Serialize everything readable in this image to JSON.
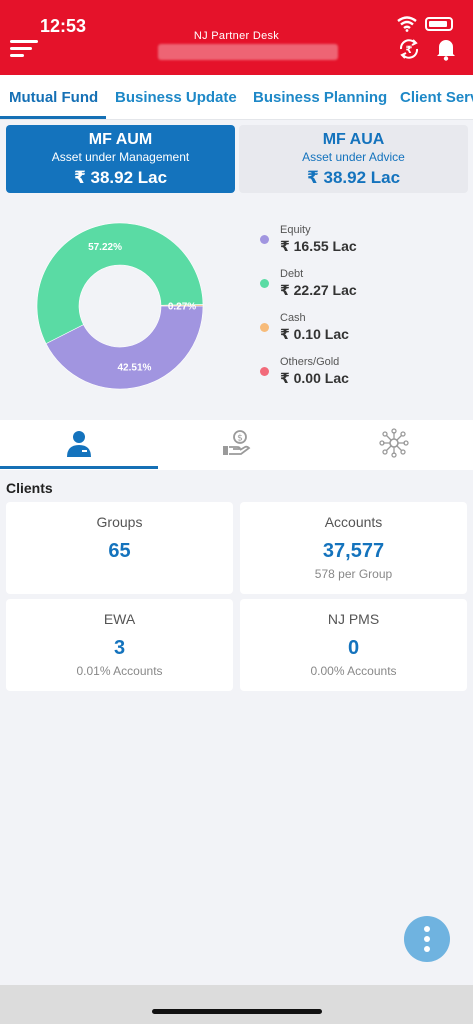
{
  "status_bar": {
    "time": "12:53"
  },
  "header": {
    "title": "NJ Partner Desk"
  },
  "tabs": [
    {
      "label": "Mutual Fund"
    },
    {
      "label": "Business Update"
    },
    {
      "label": "Business Planning"
    },
    {
      "label": "Client Serv"
    }
  ],
  "mf_aum": {
    "title": "MF AUM",
    "subtitle": "Asset under Management",
    "value": "₹ 38.92 Lac"
  },
  "mf_aua": {
    "title": "MF AUA",
    "subtitle": "Asset under Advice",
    "value": "₹ 38.92 Lac"
  },
  "chart_data": {
    "type": "pie",
    "donut": true,
    "categories": [
      "Equity",
      "Debt",
      "Cash",
      "Others/Gold"
    ],
    "values": [
      42.51,
      57.22,
      0.27,
      0.0
    ],
    "value_labels": [
      "42.51%",
      "57.22%",
      "0.27%",
      ""
    ],
    "amounts": [
      "₹ 16.55 Lac",
      "₹ 22.27 Lac",
      "₹ 0.10 Lac",
      "₹ 0.00 Lac"
    ],
    "colors": [
      "#a195e0",
      "#5adba4",
      "#f7bb7a",
      "#f26a7a"
    ],
    "legend": "right"
  },
  "icon_tabs": [
    {
      "icon": "client-user-icon",
      "color": "#1473bd"
    },
    {
      "icon": "money-hand-icon",
      "color": "#9a9a9a"
    },
    {
      "icon": "network-icon",
      "color": "#9a9a9a"
    }
  ],
  "clients": {
    "title": "Clients",
    "cards": [
      {
        "label": "Groups",
        "value": "65",
        "sub": ""
      },
      {
        "label": "Accounts",
        "value": "37,577",
        "sub": "578 per Group"
      },
      {
        "label": "EWA",
        "value": "3",
        "sub": "0.01% Accounts"
      },
      {
        "label": "NJ PMS",
        "value": "0",
        "sub": "0.00% Accounts"
      }
    ]
  },
  "colors": {
    "brand_red": "#e5122a",
    "accent_blue": "#1473bd"
  }
}
